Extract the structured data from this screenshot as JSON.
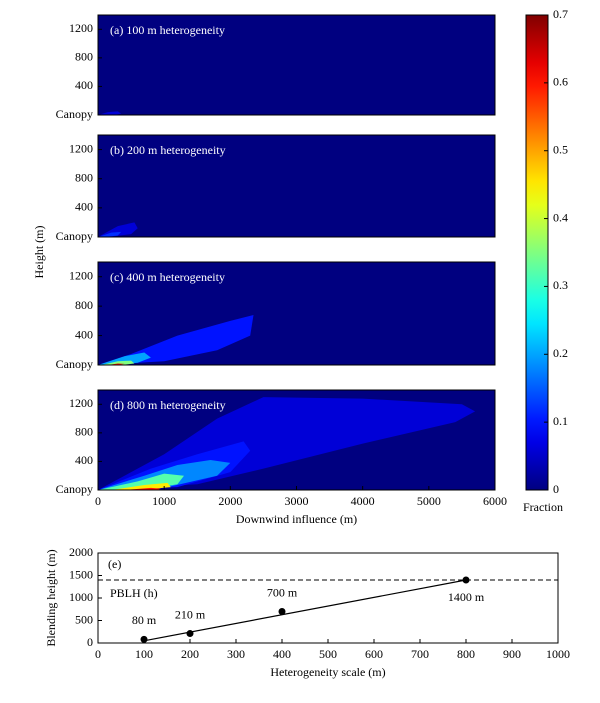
{
  "shared_ylabel": "Height (m)",
  "colorbar": {
    "label": "Fraction",
    "lim": [
      0,
      0.7
    ],
    "ticks": [
      0,
      0.1,
      0.2,
      0.3,
      0.4,
      0.5,
      0.6,
      0.7
    ],
    "colormap": "jet"
  },
  "chart_data": [
    {
      "type": "contour",
      "label": "(a) 100 m heterogeneity",
      "xlim": [
        0,
        6000
      ],
      "ylim": [
        0,
        1400
      ],
      "yticks": [
        {
          "value": 0,
          "label": "Canopy"
        },
        400,
        800,
        1200
      ],
      "contours": [
        {
          "level": 0.06,
          "x": [
            0,
            150,
            300,
            350,
            250,
            0
          ],
          "y": [
            0,
            40,
            50,
            20,
            0,
            0
          ]
        }
      ]
    },
    {
      "type": "contour",
      "label": "(b) 200 m heterogeneity",
      "xlim": [
        0,
        6000
      ],
      "ylim": [
        0,
        1400
      ],
      "yticks": [
        {
          "value": 0,
          "label": "Canopy"
        },
        400,
        800,
        1200
      ],
      "contours": [
        {
          "level": 0.06,
          "x": [
            0,
            300,
            550,
            600,
            500,
            200,
            0
          ],
          "y": [
            0,
            150,
            200,
            120,
            40,
            5,
            0
          ]
        },
        {
          "level": 0.12,
          "x": [
            0,
            200,
            350,
            300,
            100,
            0
          ],
          "y": [
            0,
            60,
            70,
            20,
            0,
            0
          ]
        }
      ]
    },
    {
      "type": "contour",
      "label": "(c) 400 m heterogeneity",
      "xlim": [
        0,
        6000
      ],
      "ylim": [
        0,
        1400
      ],
      "yticks": [
        {
          "value": 0,
          "label": "Canopy"
        },
        400,
        800,
        1200
      ],
      "contours": [
        {
          "level": 0.1,
          "x": [
            0,
            500,
            1200,
            2000,
            2350,
            2300,
            1800,
            1000,
            0
          ],
          "y": [
            0,
            150,
            400,
            600,
            680,
            400,
            200,
            50,
            0
          ]
        },
        {
          "level": 0.2,
          "x": [
            0,
            400,
            700,
            800,
            600,
            300,
            0
          ],
          "y": [
            0,
            120,
            170,
            100,
            30,
            5,
            0
          ]
        },
        {
          "level": 0.35,
          "x": [
            50,
            300,
            500,
            550,
            350,
            50
          ],
          "y": [
            0,
            50,
            60,
            20,
            0,
            0
          ]
        },
        {
          "level": 0.6,
          "x": [
            150,
            300,
            400,
            300,
            150
          ],
          "y": [
            0,
            20,
            15,
            0,
            0
          ]
        }
      ]
    },
    {
      "type": "contour",
      "label": "(d) 800 m heterogeneity",
      "xlim": [
        0,
        6000
      ],
      "ylim": [
        0,
        1400
      ],
      "yticks": [
        {
          "value": 0,
          "label": "Canopy"
        },
        400,
        800,
        1200
      ],
      "xticks": [
        0,
        1000,
        2000,
        3000,
        4000,
        5000,
        6000
      ],
      "xlabel": "Downwind influence (m)",
      "contours": [
        {
          "level": 0.06,
          "x": [
            0,
            1000,
            1800,
            2500,
            4000,
            5500,
            5700,
            5400,
            4000,
            2500,
            1500,
            0
          ],
          "y": [
            0,
            500,
            1000,
            1300,
            1280,
            1200,
            1100,
            950,
            650,
            300,
            80,
            0
          ]
        },
        {
          "level": 0.1,
          "x": [
            0,
            800,
            1500,
            2200,
            2300,
            2000,
            1200,
            0
          ],
          "y": [
            0,
            300,
            500,
            680,
            550,
            250,
            40,
            0
          ]
        },
        {
          "level": 0.18,
          "x": [
            0,
            700,
            1200,
            1700,
            2000,
            1800,
            1100,
            0
          ],
          "y": [
            0,
            200,
            350,
            420,
            380,
            200,
            50,
            0
          ]
        },
        {
          "level": 0.32,
          "x": [
            0,
            600,
            1000,
            1300,
            1200,
            800,
            0
          ],
          "y": [
            0,
            120,
            230,
            200,
            80,
            20,
            0
          ]
        },
        {
          "level": 0.45,
          "x": [
            200,
            700,
            1050,
            1100,
            700,
            200
          ],
          "y": [
            0,
            70,
            100,
            40,
            5,
            0
          ]
        },
        {
          "level": 0.6,
          "x": [
            400,
            800,
            950,
            900,
            400
          ],
          "y": [
            0,
            30,
            20,
            0,
            0
          ]
        }
      ]
    },
    {
      "type": "scatter",
      "label": "(e)",
      "xlim": [
        0,
        1000
      ],
      "ylim": [
        0,
        2000
      ],
      "xticks": [
        0,
        100,
        200,
        300,
        400,
        500,
        600,
        700,
        800,
        900,
        1000
      ],
      "yticks": [
        0,
        500,
        1000,
        1500,
        2000
      ],
      "xlabel": "Heterogeneity scale (m)",
      "ylabel": "Blending height (m)",
      "x": [
        100,
        200,
        400,
        800
      ],
      "values": [
        80,
        210,
        700,
        1400
      ],
      "value_labels": [
        "80 m",
        "210 m",
        "700 m",
        "1400 m"
      ],
      "color": "#000000",
      "fit": {
        "x": [
          100,
          800
        ],
        "y": [
          50,
          1400
        ]
      },
      "hline": {
        "value": 1400,
        "label": "PBLH (h)"
      }
    }
  ]
}
